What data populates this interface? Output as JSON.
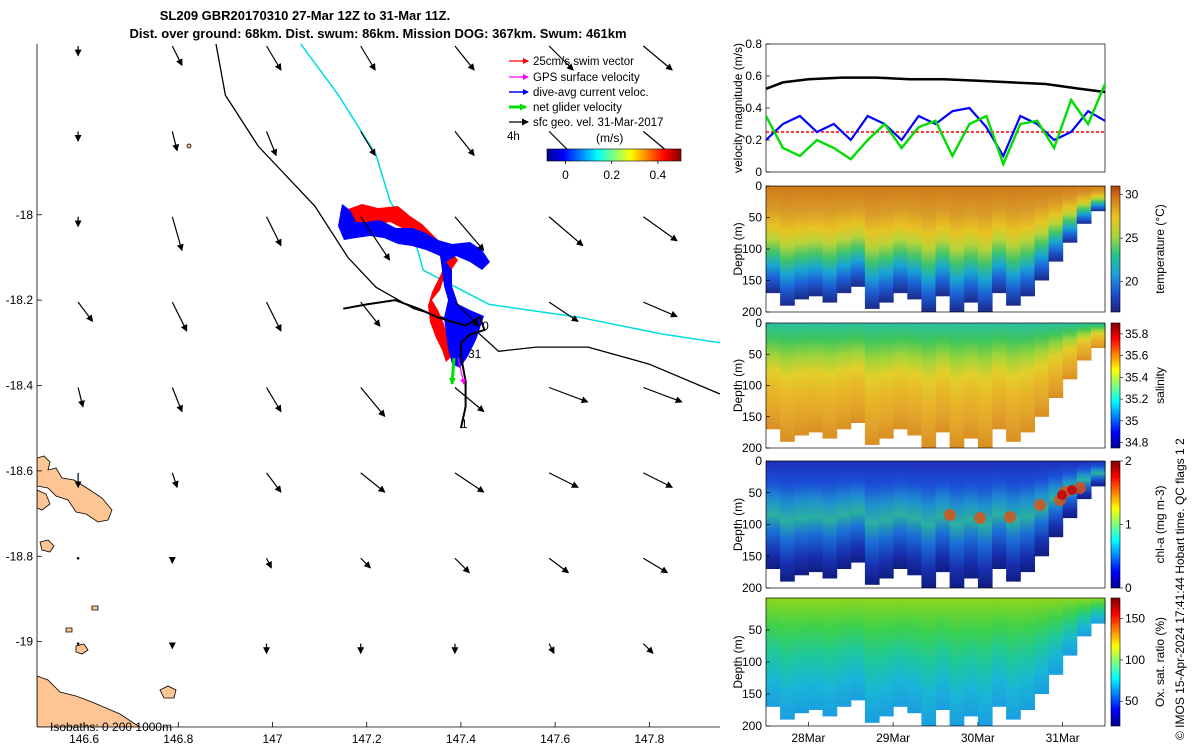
{
  "title": {
    "line1": "SL209 GBR20170310 27-Mar 12Z to 31-Mar 11Z.",
    "line2": "Dist. over ground: 68km. Dist. swum: 86km. Mission DOG: 367km. Swum: 461km"
  },
  "credit": "© IMOS 15-Apr-2024 17:41:44 Hobart time. QC flags 1  2",
  "colors": {
    "swim": "#ff0000",
    "gps": "#ff00ff",
    "current": "#0000ff",
    "net": "#00dd00",
    "sfc": "#000000",
    "track": "#000000",
    "isobath": "#00dddd",
    "land": "#fcc593"
  },
  "chart_data": [
    {
      "type": "map",
      "name": "track-map",
      "xlim": [
        146.5,
        147.95
      ],
      "ylim": [
        -19.2,
        -17.6
      ],
      "xticks": [
        146.6,
        146.8,
        147.0,
        147.2,
        147.4,
        147.6,
        147.8
      ],
      "xtick_labels": [
        "146.6",
        "146.8",
        "147",
        "147.2",
        "147.4",
        "147.6",
        "147.8"
      ],
      "yticks": [
        -18.0,
        -18.2,
        -18.4,
        -18.6,
        -18.8,
        -19.0
      ],
      "ytick_labels": [
        "-18",
        "-18.2",
        "-18.4",
        "-18.6",
        "-18.8",
        "-19"
      ],
      "legend": {
        "placement": "top-right",
        "entries": [
          "25cm/s swim vector",
          "GPS surface velocity",
          "dive-avg current veloc.",
          "net glider velocity",
          "sfc geo. vel. 31-Mar-2017"
        ],
        "extra": "4h"
      },
      "colorbar": {
        "label": "(m/s)",
        "ticks": [
          0,
          0.2,
          0.4
        ],
        "tick_labels": [
          "0",
          "0.2",
          "0.4"
        ],
        "range": [
          -0.08,
          0.5
        ]
      },
      "day_labels": [
        {
          "text": "0",
          "lon": 147.445,
          "lat": -18.27
        },
        {
          "text": "31",
          "lon": 147.415,
          "lat": -18.335
        },
        {
          "text": "1",
          "lon": 147.4,
          "lat": -18.5
        }
      ],
      "isobath_note": "Isobaths: 0   200  1000m",
      "glider_track": [
        [
          147.15,
          -18.22
        ],
        [
          147.2,
          -18.21
        ],
        [
          147.26,
          -18.2
        ],
        [
          147.31,
          -18.22
        ],
        [
          147.35,
          -18.24
        ],
        [
          147.41,
          -18.26
        ],
        [
          147.44,
          -18.24
        ],
        [
          147.45,
          -18.27
        ],
        [
          147.42,
          -18.28
        ],
        [
          147.4,
          -18.3
        ],
        [
          147.4,
          -18.33
        ],
        [
          147.41,
          -18.39
        ],
        [
          147.41,
          -18.45
        ],
        [
          147.4,
          -18.5
        ]
      ],
      "long_track": [
        [
          146.88,
          -17.6
        ],
        [
          146.9,
          -17.72
        ],
        [
          146.97,
          -17.84
        ],
        [
          147.09,
          -17.98
        ],
        [
          147.16,
          -18.1
        ],
        [
          147.22,
          -18.17
        ],
        [
          147.3,
          -18.22
        ],
        [
          147.42,
          -18.26
        ],
        [
          147.48,
          -18.32
        ],
        [
          147.56,
          -18.31
        ],
        [
          147.67,
          -18.31
        ],
        [
          147.8,
          -18.35
        ],
        [
          147.95,
          -18.42
        ]
      ],
      "isobath_line": [
        [
          147.06,
          -17.6
        ],
        [
          147.14,
          -17.72
        ],
        [
          147.22,
          -17.86
        ],
        [
          147.25,
          -17.97
        ],
        [
          147.3,
          -18.05
        ],
        [
          147.32,
          -18.13
        ],
        [
          147.46,
          -18.21
        ],
        [
          147.65,
          -18.24
        ],
        [
          147.83,
          -18.28
        ],
        [
          147.95,
          -18.3
        ]
      ],
      "sfc_vectors": {
        "lons": [
          146.6,
          146.8,
          147.0,
          147.2,
          147.4,
          147.6,
          147.8
        ],
        "lats": [
          -17.6,
          -17.8,
          -18.0,
          -18.2,
          -18.4,
          -18.6,
          -18.8,
          -19.0
        ],
        "u": [
          [
            0.0,
            0.02,
            0.03,
            0.03,
            0.04,
            0.05,
            0.06
          ],
          [
            0.0,
            0.01,
            0.02,
            0.03,
            0.04,
            0.05,
            0.06
          ],
          [
            0.0,
            0.02,
            0.03,
            0.06,
            0.06,
            0.07,
            0.07
          ],
          [
            0.03,
            0.03,
            0.03,
            0.04,
            0.05,
            0.06,
            0.07
          ],
          [
            0.01,
            0.02,
            0.03,
            0.05,
            0.06,
            0.08,
            0.08
          ],
          [
            0.0,
            0.01,
            0.03,
            0.05,
            0.06,
            0.06,
            0.06
          ],
          [
            0.0,
            0.0,
            0.01,
            0.02,
            0.03,
            0.04,
            0.05
          ],
          [
            0.0,
            0.0,
            0.0,
            0.0,
            0.0,
            0.01,
            0.02
          ]
        ],
        "v": [
          [
            -0.02,
            -0.04,
            -0.05,
            -0.05,
            -0.05,
            -0.05,
            -0.05
          ],
          [
            -0.02,
            -0.04,
            -0.05,
            -0.05,
            -0.05,
            -0.05,
            -0.05
          ],
          [
            -0.02,
            -0.07,
            -0.06,
            -0.09,
            -0.07,
            -0.06,
            -0.05
          ],
          [
            -0.04,
            -0.06,
            -0.06,
            -0.05,
            -0.05,
            -0.04,
            -0.03
          ],
          [
            -0.04,
            -0.05,
            -0.05,
            -0.06,
            -0.05,
            -0.03,
            -0.03
          ],
          [
            -0.03,
            -0.03,
            -0.04,
            -0.04,
            -0.04,
            -0.03,
            -0.03
          ],
          [
            0.0,
            -0.01,
            -0.02,
            -0.02,
            -0.03,
            -0.03,
            -0.03
          ],
          [
            0.0,
            -0.01,
            -0.02,
            -0.02,
            -0.02,
            -0.02,
            -0.02
          ]
        ]
      }
    },
    {
      "type": "line",
      "name": "velocity-panel",
      "ylabel": "velocity magnitude (m/s)",
      "ylim": [
        0,
        0.8
      ],
      "yticks": [
        0,
        0.2,
        0.4,
        0.6,
        0.8
      ],
      "ytick_labels": [
        "0",
        "0.2",
        "0.4",
        "0.6",
        "0.8"
      ],
      "xlim": [
        27.5,
        31.5
      ],
      "series": [
        {
          "name": "sfc geo. vel.",
          "x": [
            27.5,
            27.7,
            28.0,
            28.4,
            28.8,
            29.2,
            29.6,
            30.0,
            30.4,
            30.8,
            31.2,
            31.5
          ],
          "values": [
            0.52,
            0.56,
            0.58,
            0.59,
            0.59,
            0.58,
            0.58,
            0.57,
            0.56,
            0.55,
            0.52,
            0.5
          ]
        },
        {
          "name": "swim vector",
          "x": [
            27.5,
            31.5
          ],
          "values": [
            0.25,
            0.25
          ]
        },
        {
          "name": "dive-avg current",
          "x": [
            27.5,
            27.7,
            27.9,
            28.1,
            28.3,
            28.5,
            28.7,
            28.9,
            29.1,
            29.3,
            29.5,
            29.7,
            29.9,
            30.1,
            30.3,
            30.5,
            30.7,
            30.9,
            31.1,
            31.3,
            31.5
          ],
          "values": [
            0.2,
            0.3,
            0.35,
            0.25,
            0.3,
            0.2,
            0.35,
            0.3,
            0.2,
            0.35,
            0.3,
            0.38,
            0.4,
            0.28,
            0.1,
            0.35,
            0.3,
            0.2,
            0.25,
            0.38,
            0.32
          ]
        },
        {
          "name": "net glider",
          "x": [
            27.5,
            27.7,
            27.9,
            28.1,
            28.3,
            28.5,
            28.7,
            28.9,
            29.1,
            29.3,
            29.5,
            29.7,
            29.9,
            30.1,
            30.3,
            30.5,
            30.7,
            30.9,
            31.1,
            31.3,
            31.5
          ],
          "values": [
            0.35,
            0.15,
            0.1,
            0.2,
            0.15,
            0.08,
            0.2,
            0.3,
            0.15,
            0.28,
            0.32,
            0.1,
            0.3,
            0.35,
            0.05,
            0.3,
            0.32,
            0.15,
            0.45,
            0.3,
            0.55
          ]
        }
      ]
    },
    {
      "type": "heatmap",
      "name": "temperature-section",
      "ylabel": "Depth (m)",
      "clabel": "temperature (°C)",
      "ylim": [
        0,
        200
      ],
      "yticks": [
        0,
        50,
        100,
        150,
        200
      ],
      "ytick_labels": [
        "0",
        "50",
        "100",
        "150",
        "200"
      ],
      "clim": [
        16.5,
        31
      ],
      "cticks": [
        20,
        25,
        30
      ],
      "ctick_labels": [
        "20",
        "25",
        "30"
      ],
      "surface_value": 29,
      "bottom_value": 18,
      "max_depth": [
        170,
        190,
        180,
        175,
        185,
        170,
        160,
        195,
        185,
        170,
        180,
        200,
        175,
        200,
        185,
        200,
        170,
        190,
        175,
        150,
        120,
        90,
        60,
        40
      ]
    },
    {
      "type": "heatmap",
      "name": "salinity-section",
      "ylabel": "Depth (m)",
      "clabel": "salinity",
      "ylim": [
        0,
        200
      ],
      "yticks": [
        0,
        50,
        100,
        150,
        200
      ],
      "ytick_labels": [
        "0",
        "50",
        "100",
        "150",
        "200"
      ],
      "clim": [
        34.75,
        35.9
      ],
      "cticks": [
        34.8,
        35.0,
        35.2,
        35.4,
        35.6,
        35.8
      ],
      "ctick_labels": [
        "34.8",
        "35",
        "35.2",
        "35.4",
        "35.6",
        "35.8"
      ],
      "surface_value": 35.35,
      "bottom_value": 35.7,
      "max_depth": [
        170,
        190,
        180,
        175,
        185,
        170,
        160,
        195,
        185,
        170,
        180,
        200,
        175,
        200,
        185,
        200,
        170,
        190,
        175,
        150,
        120,
        90,
        60,
        40
      ]
    },
    {
      "type": "heatmap",
      "name": "chla-section",
      "ylabel": "Depth (m)",
      "clabel": "chl-a (mg m-3)",
      "ylim": [
        0,
        200
      ],
      "yticks": [
        0,
        50,
        100,
        150,
        200
      ],
      "ytick_labels": [
        "0",
        "50",
        "100",
        "150",
        "200"
      ],
      "clim": [
        0,
        2
      ],
      "cticks": [
        0,
        1,
        2
      ],
      "ctick_labels": [
        "0",
        "1",
        "2"
      ],
      "surface_value": 0.2,
      "bottom_value": 0.1,
      "max_depth": [
        170,
        190,
        180,
        175,
        185,
        170,
        160,
        195,
        185,
        170,
        180,
        200,
        175,
        200,
        185,
        200,
        170,
        190,
        175,
        150,
        120,
        90,
        60,
        40
      ]
    },
    {
      "type": "heatmap",
      "name": "oxygen-section",
      "ylabel": "Depth (m)",
      "clabel": "Ox. sat. ratio (%)",
      "ylim": [
        0,
        200
      ],
      "yticks": [
        50,
        100,
        150,
        200
      ],
      "ytick_labels": [
        "50",
        "100",
        "150",
        "200"
      ],
      "clim": [
        20,
        175
      ],
      "cticks": [
        50,
        100,
        150
      ],
      "ctick_labels": [
        "50",
        "100",
        "150"
      ],
      "surface_value": 140,
      "bottom_value": 85,
      "max_depth": [
        170,
        190,
        180,
        175,
        185,
        170,
        160,
        195,
        185,
        170,
        180,
        200,
        175,
        200,
        185,
        200,
        170,
        190,
        175,
        150,
        120,
        90,
        60,
        40
      ]
    }
  ],
  "time_axis": {
    "ticks": [
      28,
      29,
      30,
      31
    ],
    "tick_labels": [
      "28Mar",
      "29Mar",
      "30Mar",
      "31Mar"
    ],
    "range": [
      27.5,
      31.5
    ]
  }
}
